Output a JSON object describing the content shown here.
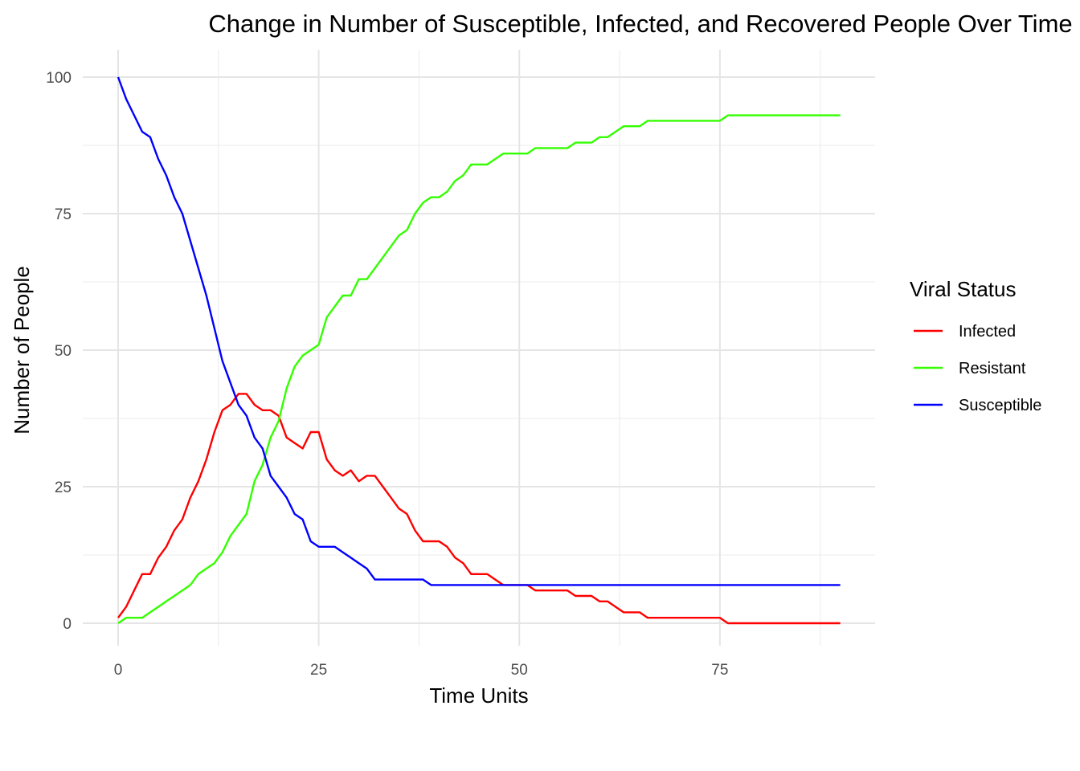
{
  "chart_data": {
    "type": "line",
    "title": "Change in Number of Susceptible, Infected, and Recovered People Over Time",
    "xlabel": "Time Units",
    "ylabel": "Number of People",
    "xlim": [
      0,
      90
    ],
    "ylim": [
      0,
      100
    ],
    "x_ticks": [
      0,
      25,
      50,
      75
    ],
    "y_ticks": [
      0,
      25,
      50,
      75,
      100
    ],
    "grid": true,
    "legend": {
      "title": "Viral Status",
      "placement": "right"
    },
    "series": [
      {
        "name": "Infected",
        "color": "#ff0000",
        "values": [
          1,
          3,
          6,
          9,
          9,
          12,
          14,
          17,
          19,
          23,
          26,
          30,
          35,
          39,
          40,
          42,
          42,
          40,
          39,
          39,
          38,
          34,
          33,
          32,
          35,
          35,
          30,
          28,
          27,
          28,
          26,
          27,
          27,
          25,
          23,
          21,
          20,
          17,
          15,
          15,
          15,
          14,
          12,
          11,
          9,
          9,
          9,
          8,
          7,
          7,
          7,
          7,
          6,
          6,
          6,
          6,
          6,
          5,
          5,
          5,
          4,
          4,
          3,
          2,
          2,
          2,
          1,
          1,
          1,
          1,
          1,
          1,
          1,
          1,
          1,
          1,
          0,
          0,
          0,
          0,
          0,
          0,
          0,
          0,
          0,
          0,
          0,
          0,
          0,
          0,
          0
        ]
      },
      {
        "name": "Resistant",
        "color": "#33ff00",
        "values": [
          0,
          1,
          1,
          1,
          2,
          3,
          4,
          5,
          6,
          7,
          9,
          10,
          11,
          13,
          16,
          18,
          20,
          26,
          29,
          34,
          37,
          43,
          47,
          49,
          50,
          51,
          56,
          58,
          60,
          60,
          63,
          63,
          65,
          67,
          69,
          71,
          72,
          75,
          77,
          78,
          78,
          79,
          81,
          82,
          84,
          84,
          84,
          85,
          86,
          86,
          86,
          86,
          87,
          87,
          87,
          87,
          87,
          88,
          88,
          88,
          89,
          89,
          90,
          91,
          91,
          91,
          92,
          92,
          92,
          92,
          92,
          92,
          92,
          92,
          92,
          92,
          93,
          93,
          93,
          93,
          93,
          93,
          93,
          93,
          93,
          93,
          93,
          93,
          93,
          93,
          93
        ]
      },
      {
        "name": "Susceptible",
        "color": "#0000ff",
        "values": [
          100,
          96,
          93,
          90,
          89,
          85,
          82,
          78,
          75,
          70,
          65,
          60,
          54,
          48,
          44,
          40,
          38,
          34,
          32,
          27,
          25,
          23,
          20,
          19,
          15,
          14,
          14,
          14,
          13,
          12,
          11,
          10,
          8,
          8,
          8,
          8,
          8,
          8,
          8,
          7,
          7,
          7,
          7,
          7,
          7,
          7,
          7,
          7,
          7,
          7,
          7,
          7,
          7,
          7,
          7,
          7,
          7,
          7,
          7,
          7,
          7,
          7,
          7,
          7,
          7,
          7,
          7,
          7,
          7,
          7,
          7,
          7,
          7,
          7,
          7,
          7,
          7,
          7,
          7,
          7,
          7,
          7,
          7,
          7,
          7,
          7,
          7,
          7,
          7,
          7,
          7
        ]
      }
    ]
  }
}
